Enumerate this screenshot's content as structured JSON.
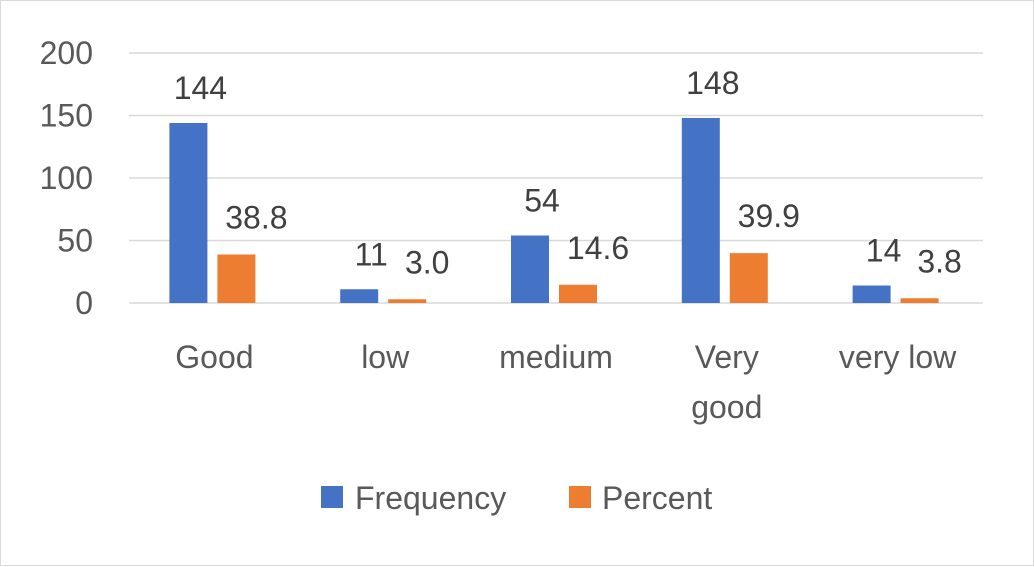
{
  "chart_data": {
    "type": "bar",
    "categories": [
      "Good",
      "low",
      "medium",
      "Very good",
      "very low"
    ],
    "series": [
      {
        "name": "Frequency",
        "color": "#4472c4",
        "values": [
          144,
          11,
          54,
          148,
          14
        ],
        "labels": [
          "144",
          "11",
          "54",
          "148",
          "14"
        ]
      },
      {
        "name": "Percent",
        "color": "#ed7d31",
        "values": [
          38.8,
          3.0,
          14.6,
          39.9,
          3.8
        ],
        "labels": [
          "38.8",
          "3.0",
          "14.6",
          "39.9",
          "3.8"
        ]
      }
    ],
    "ylim": [
      0,
      200
    ],
    "yticks": [
      0,
      50,
      100,
      150,
      200
    ],
    "grid": true,
    "legend_position": "bottom"
  }
}
